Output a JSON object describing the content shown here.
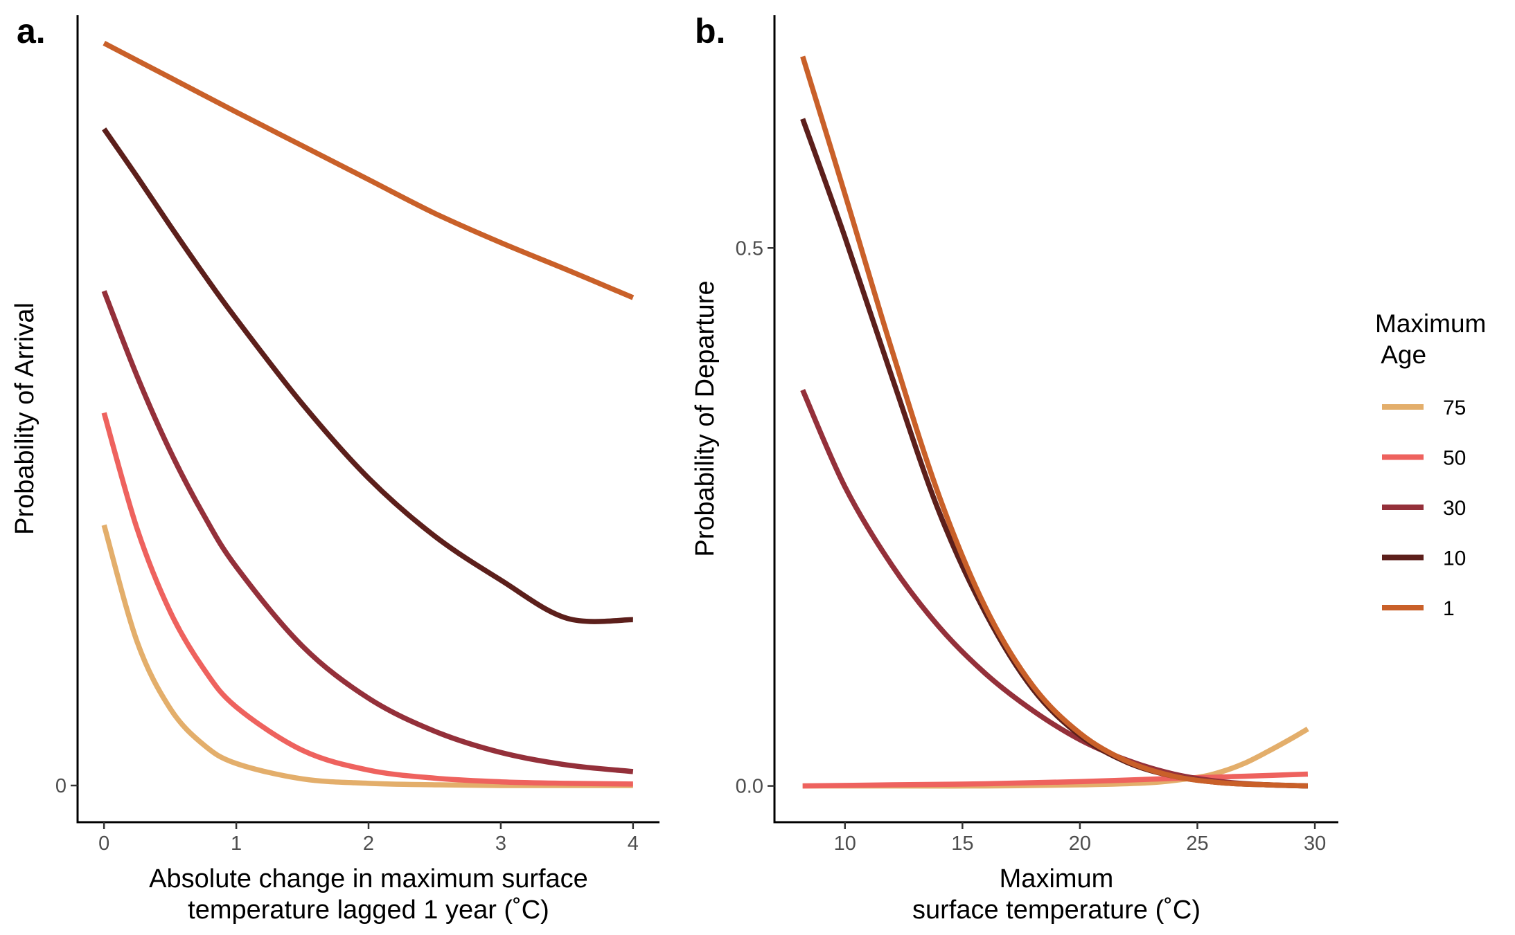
{
  "chart_data": [
    {
      "panel_label": "a.",
      "type": "line",
      "xlabel_lines": [
        "Absolute change in maximum surface",
        "temperature lagged 1 year (˚C)"
      ],
      "ylabel": "Probability of Arrival",
      "xlim": [
        -0.2,
        4.2
      ],
      "ylim": [
        -0.05,
        1.05
      ],
      "xticks": [
        0,
        1,
        2,
        3,
        4
      ],
      "xtick_labels": [
        "0",
        "1",
        "2",
        "3",
        "4"
      ],
      "yticks": [
        0
      ],
      "ytick_labels": [
        "0"
      ],
      "grid": false,
      "series": [
        {
          "name": "75",
          "color": "#E3AE6B",
          "x": [
            0,
            0.25,
            0.5,
            0.75,
            1.0,
            1.5,
            2.0,
            2.5,
            3.0,
            3.5,
            4.0
          ],
          "y": [
            0.355,
            0.196,
            0.105,
            0.056,
            0.03,
            0.009,
            0.003,
            0.001,
            0.0,
            0.0,
            0.0
          ]
        },
        {
          "name": "50",
          "color": "#EE625E",
          "x": [
            0,
            0.25,
            0.5,
            0.75,
            1.0,
            1.5,
            2.0,
            2.5,
            3.0,
            3.5,
            4.0
          ],
          "y": [
            0.508,
            0.35,
            0.237,
            0.16,
            0.107,
            0.048,
            0.021,
            0.01,
            0.005,
            0.003,
            0.002
          ]
        },
        {
          "name": "30",
          "color": "#94303A",
          "x": [
            0,
            0.25,
            0.5,
            0.75,
            1.0,
            1.5,
            2.0,
            2.5,
            3.0,
            3.5,
            4.0
          ],
          "y": [
            0.674,
            0.558,
            0.456,
            0.37,
            0.298,
            0.19,
            0.119,
            0.074,
            0.045,
            0.028,
            0.019
          ]
        },
        {
          "name": "10",
          "color": "#5C1F1B",
          "x": [
            0,
            0.25,
            0.5,
            0.75,
            1.0,
            1.5,
            2.0,
            2.5,
            3.0,
            3.5,
            4.0
          ],
          "y": [
            0.895,
            0.83,
            0.763,
            0.698,
            0.636,
            0.52,
            0.419,
            0.34,
            0.28,
            0.228,
            0.226
          ]
        },
        {
          "name": "1",
          "color": "#C96029",
          "x": [
            0,
            0.5,
            1.0,
            1.5,
            2.0,
            2.5,
            3.0,
            3.5,
            4.0
          ],
          "y": [
            1.012,
            0.965,
            0.918,
            0.872,
            0.826,
            0.78,
            0.74,
            0.703,
            0.665
          ]
        }
      ]
    },
    {
      "panel_label": "b.",
      "type": "line",
      "xlabel_lines": [
        "Maximum",
        "surface temperature (˚C)"
      ],
      "ylabel": "Probability of Departure",
      "xlim": [
        7.0,
        31.0
      ],
      "ylim": [
        -0.0337,
        0.7163
      ],
      "xticks": [
        10,
        15,
        20,
        25,
        30
      ],
      "xtick_labels": [
        "10",
        "15",
        "20",
        "25",
        "30"
      ],
      "yticks": [
        0.0,
        0.5
      ],
      "ytick_labels": [
        "0.0",
        "0.5"
      ],
      "grid": false,
      "series": [
        {
          "name": "75",
          "color": "#E3AE6B",
          "x": [
            8.2,
            12,
            16,
            20,
            23,
            25,
            26,
            27,
            28,
            29,
            29.7
          ],
          "y": [
            0.0,
            0.0,
            0.0,
            0.001,
            0.003,
            0.008,
            0.013,
            0.021,
            0.032,
            0.044,
            0.053
          ]
        },
        {
          "name": "50",
          "color": "#EE625E",
          "x": [
            8.2,
            12,
            16,
            20,
            24,
            27,
            29.7
          ],
          "y": [
            0.0,
            0.001,
            0.002,
            0.004,
            0.007,
            0.009,
            0.011
          ]
        },
        {
          "name": "30",
          "color": "#94303A",
          "x": [
            8.2,
            10,
            12,
            14,
            16,
            18,
            20,
            22,
            24,
            26,
            28,
            29.7
          ],
          "y": [
            0.368,
            0.278,
            0.205,
            0.148,
            0.104,
            0.07,
            0.043,
            0.024,
            0.011,
            0.004,
            0.001,
            0.0
          ]
        },
        {
          "name": "10",
          "color": "#5C1F1B",
          "x": [
            8.2,
            10,
            12,
            14,
            16,
            18,
            20,
            22,
            24,
            26,
            28,
            29.7
          ],
          "y": [
            0.62,
            0.51,
            0.38,
            0.255,
            0.16,
            0.09,
            0.047,
            0.022,
            0.009,
            0.003,
            0.001,
            0.0
          ]
        },
        {
          "name": "1",
          "color": "#C96029",
          "x": [
            8.2,
            10,
            12,
            14,
            16,
            18,
            20,
            22,
            24,
            26,
            28,
            29.7
          ],
          "y": [
            0.678,
            0.55,
            0.405,
            0.27,
            0.165,
            0.093,
            0.049,
            0.023,
            0.009,
            0.003,
            0.001,
            0.0
          ]
        }
      ]
    }
  ],
  "legend": {
    "title_lines": [
      "Maximum",
      " Age"
    ],
    "placement": "right",
    "entries": [
      {
        "label": "75",
        "color": "#E3AE6B"
      },
      {
        "label": "50",
        "color": "#EE625E"
      },
      {
        "label": "30",
        "color": "#94303A"
      },
      {
        "label": "10",
        "color": "#5C1F1B"
      },
      {
        "label": "1",
        "color": "#C96029"
      }
    ]
  }
}
